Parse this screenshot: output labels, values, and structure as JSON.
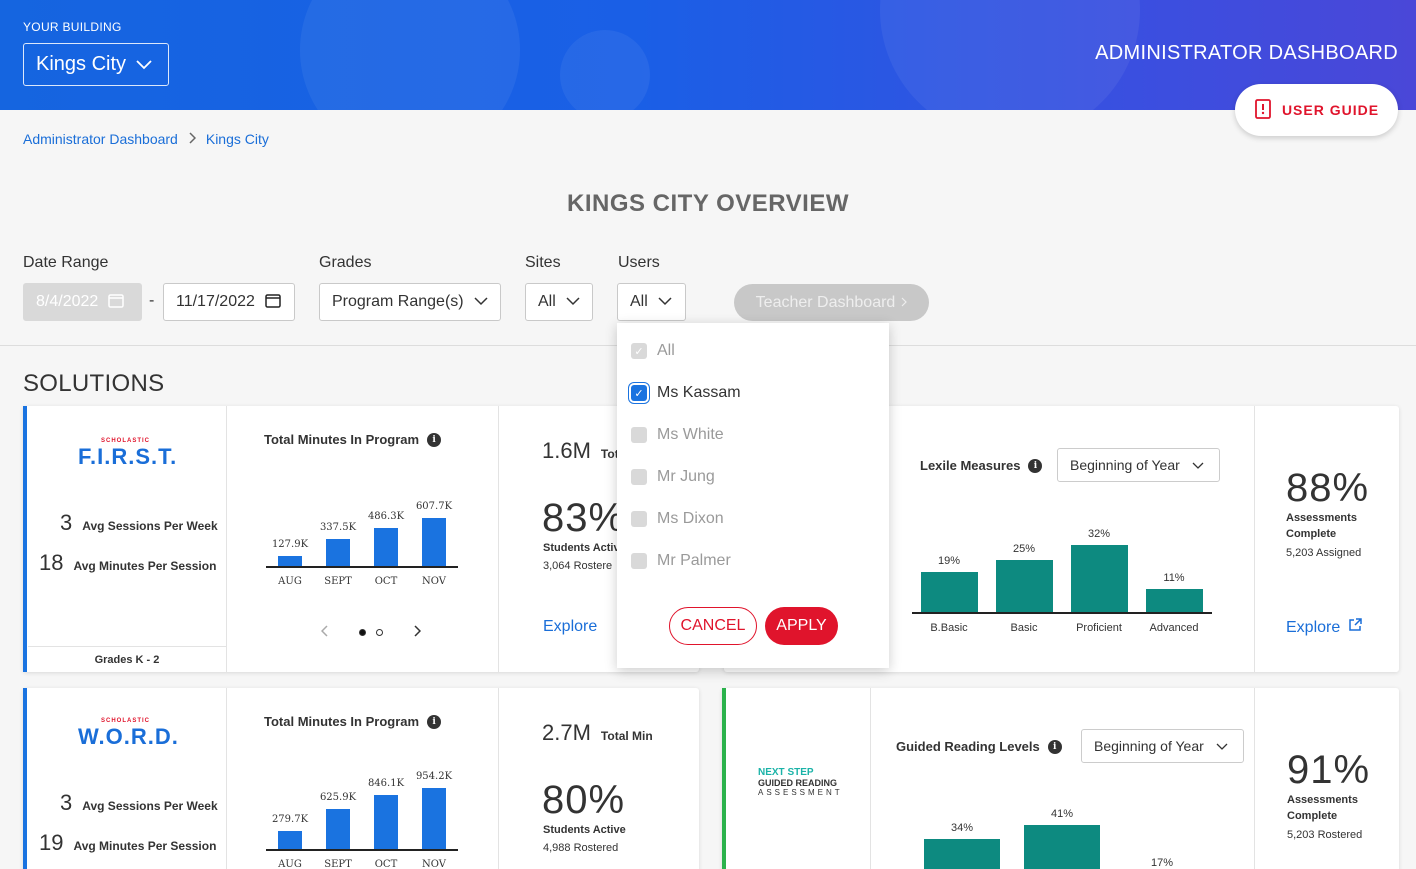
{
  "header": {
    "building_label": "YOUR BUILDING",
    "building_value": "Kings City",
    "dashboard_title": "ADMINISTRATOR DASHBOARD",
    "user_guide": "USER GUIDE"
  },
  "breadcrumb": [
    "Administrator Dashboard",
    "Kings City"
  ],
  "overview_title": "KINGS CITY OVERVIEW",
  "filters": {
    "date_range_label": "Date Range",
    "start_date": "8/4/2022",
    "end_date": "11/17/2022",
    "grades_label": "Grades",
    "grades_value": "Program Range(s)",
    "sites_label": "Sites",
    "sites_value": "All",
    "users_label": "Users",
    "users_value": "All",
    "teacher_dashboard": "Teacher Dashboard"
  },
  "users_dropdown": {
    "options": [
      {
        "label": "All",
        "checked": true,
        "disabled": true
      },
      {
        "label": "Ms Kassam",
        "checked": true,
        "disabled": false
      },
      {
        "label": "Ms White",
        "checked": false,
        "disabled": true
      },
      {
        "label": "Mr Jung",
        "checked": false,
        "disabled": true
      },
      {
        "label": "Ms Dixon",
        "checked": false,
        "disabled": true
      },
      {
        "label": "Mr Palmer",
        "checked": false,
        "disabled": true
      }
    ],
    "cancel": "CANCEL",
    "apply": "APPLY"
  },
  "solutions_title": "SOLUTIONS",
  "first": {
    "logo_small": "SCHOLASTIC",
    "logo": "F.I.R.S.T.",
    "sessions_num": "3",
    "sessions_label": "Avg Sessions Per Week",
    "minutes_num": "18",
    "minutes_label": "Avg Minutes Per Session",
    "grades": "Grades K - 2",
    "chart_title": "Total Minutes In Program",
    "total_min": "1.6M",
    "total_min_label": "Tot",
    "students_pct": "83%",
    "students_label": "Students Activ",
    "rostered": "3,064 Rostere",
    "explore": "Explore"
  },
  "lexile": {
    "title": "Lexile Measures",
    "period": "Beginning of Year",
    "pct": "88%",
    "assess_label_1": "Assessments",
    "assess_label_2": "Complete",
    "assigned": "5,203 Assigned",
    "explore": "Explore"
  },
  "word": {
    "logo_small": "SCHOLASTIC",
    "logo": "W.O.R.D.",
    "sessions_num": "3",
    "sessions_label": "Avg Sessions Per Week",
    "minutes_num": "19",
    "minutes_label": "Avg Minutes Per Session",
    "chart_title": "Total Minutes In Program",
    "total_min": "2.7M",
    "total_min_label": "Total Min",
    "students_pct": "80%",
    "students_label": "Students Active",
    "rostered": "4,988 Rostered"
  },
  "guided": {
    "logo_line1": "NEXT STEP",
    "logo_line2": "GUIDED READING",
    "logo_line3": "ASSESSMENT",
    "title": "Guided Reading Levels",
    "period": "Beginning of Year",
    "pct": "91%",
    "assess_label_1": "Assessments",
    "assess_label_2": "Complete",
    "rostered": "5,203 Rostered"
  },
  "chart_data": [
    {
      "type": "bar",
      "title": "Total Minutes In Program",
      "categories": [
        "AUG",
        "SEPT",
        "OCT",
        "NOV"
      ],
      "values": [
        127.9,
        337.5,
        486.3,
        607.7
      ],
      "labels": [
        "127.9K",
        "337.5K",
        "486.3K",
        "607.7K"
      ]
    },
    {
      "type": "bar",
      "title": "Lexile Measures",
      "categories": [
        "B.Basic",
        "Basic",
        "Proficient",
        "Advanced"
      ],
      "values": [
        19,
        25,
        32,
        11
      ],
      "labels": [
        "19%",
        "25%",
        "32%",
        "11%"
      ]
    },
    {
      "type": "bar",
      "title": "Total Minutes In Program",
      "categories": [
        "AUG",
        "SEPT",
        "OCT",
        "NOV"
      ],
      "values": [
        279.7,
        625.9,
        846.1,
        954.2
      ],
      "labels": [
        "279.7K",
        "625.9K",
        "846.1K",
        "954.2K"
      ]
    },
    {
      "type": "bar",
      "title": "Guided Reading Levels",
      "categories": [
        "",
        "",
        ""
      ],
      "values": [
        34,
        41,
        17
      ],
      "labels": [
        "34%",
        "41%",
        "17%"
      ]
    }
  ],
  "colors": {
    "brand_blue": "#1a73e0",
    "accent_red": "#e0142c",
    "teal": "#0d8a80",
    "green_accent": "#2bb24c"
  }
}
